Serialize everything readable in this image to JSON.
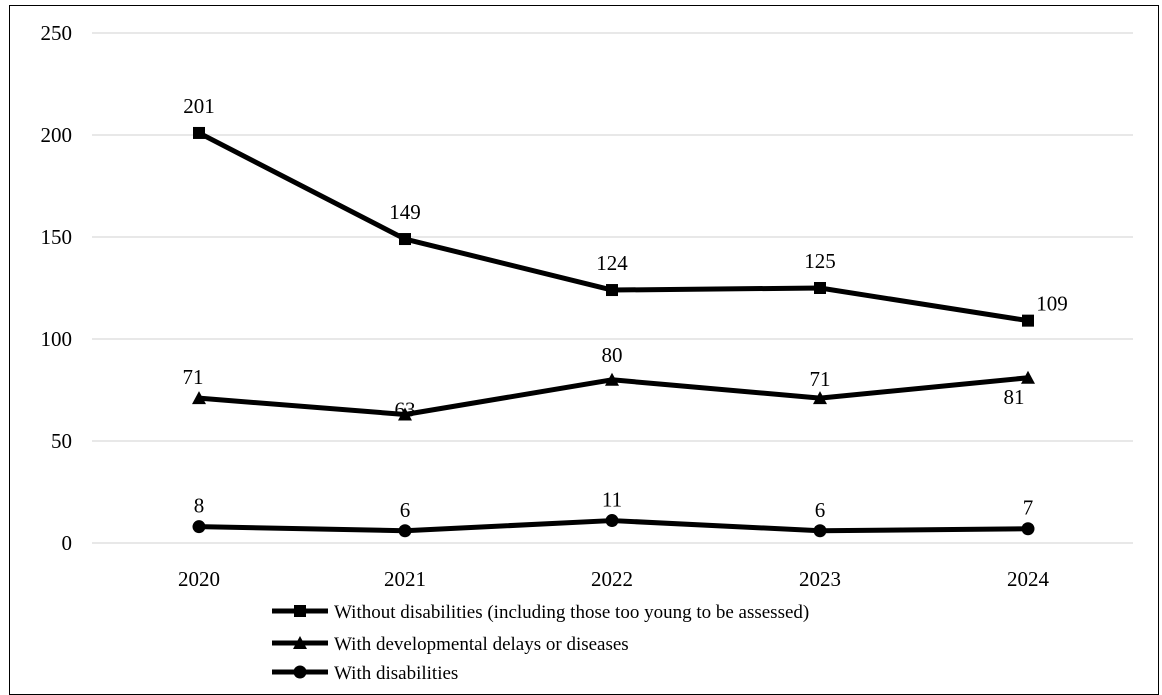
{
  "chart_data": {
    "type": "line",
    "title": "",
    "xlabel": "",
    "ylabel": "",
    "categories": [
      "2020",
      "2021",
      "2022",
      "2023",
      "2024"
    ],
    "ylim": [
      0,
      250
    ],
    "yticks": [
      0,
      50,
      100,
      150,
      200,
      250
    ],
    "grid": true,
    "legend_position": "bottom",
    "series": [
      {
        "name": "Without disabilities (including those too young to be assessed)",
        "marker": "square",
        "values": [
          201,
          149,
          124,
          125,
          109
        ]
      },
      {
        "name": "With developmental delays or diseases",
        "marker": "triangle",
        "values": [
          71,
          63,
          80,
          71,
          81
        ]
      },
      {
        "name": "With disabilities",
        "marker": "circle",
        "values": [
          8,
          6,
          11,
          6,
          7
        ]
      }
    ],
    "colors": {
      "line": "#000000",
      "grid": "#d9d9d9"
    }
  }
}
